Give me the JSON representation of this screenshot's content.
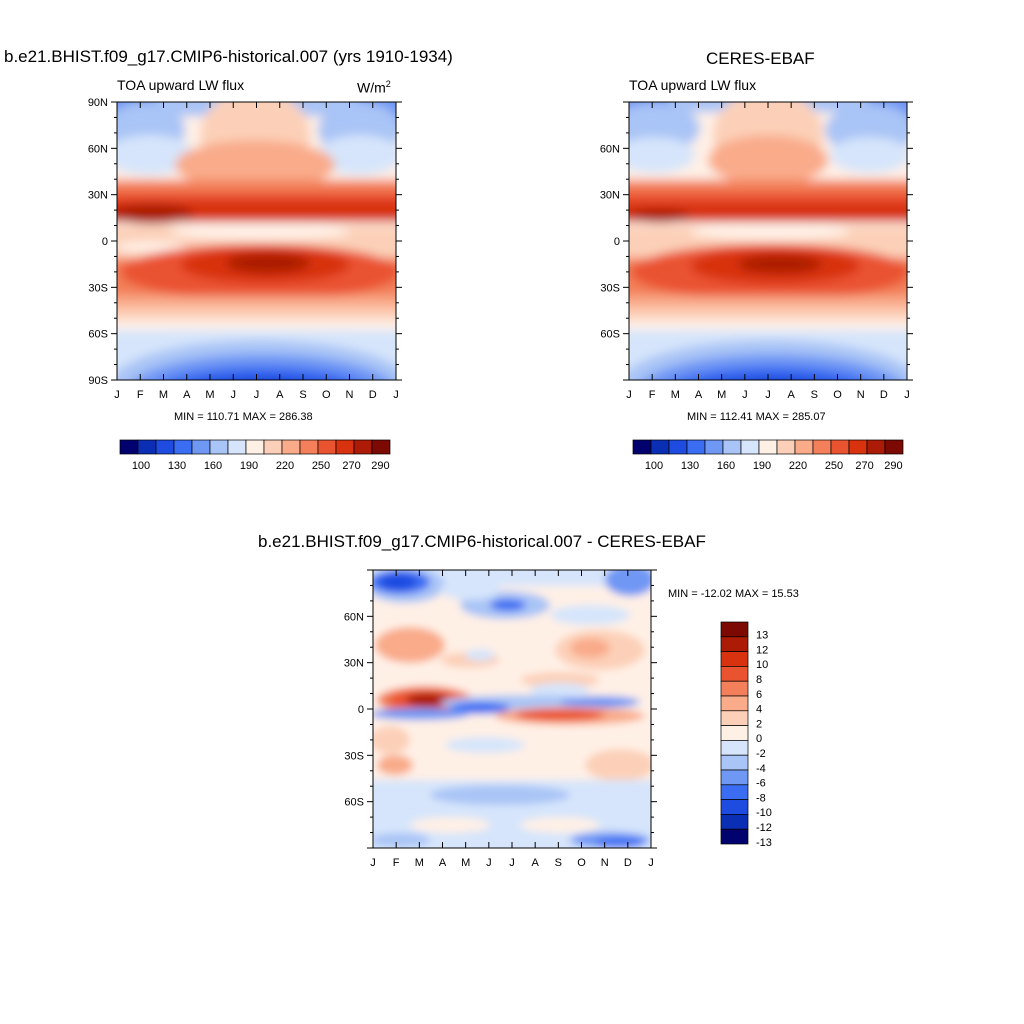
{
  "palette_abs": [
    "#02026e",
    "#0a2fb4",
    "#1e4ce0",
    "#3a6df2",
    "#6f97f4",
    "#a9c4f6",
    "#d6e5fb",
    "#fff0e6",
    "#fcd0b8",
    "#f9ab8a",
    "#f3805a",
    "#ea5330",
    "#d8320f",
    "#ab1b06",
    "#7d0a02"
  ],
  "palette_diff": [
    "#7d0a02",
    "#ab1b06",
    "#d8320f",
    "#ea5330",
    "#f3805a",
    "#f9ab8a",
    "#fcd0b8",
    "#fff0e6",
    "#d6e5fb",
    "#a9c4f6",
    "#6f97f4",
    "#3a6df2",
    "#1e4ce0",
    "#0a2fb4",
    "#02026e"
  ],
  "months": [
    "J",
    "F",
    "M",
    "A",
    "M",
    "J",
    "J",
    "A",
    "S",
    "O",
    "N",
    "D",
    "J"
  ],
  "panel1": {
    "title": "b.e21.BHIST.f09_g17.CMIP6-historical.007 (yrs 1910-1934)",
    "left_label": "TOA upward LW flux",
    "units_base": "W/m",
    "units_sup": "2",
    "minmax": "MIN = 110.71 MAX = 286.38",
    "yticks": [
      "90N",
      "60N",
      "30N",
      "0",
      "30S",
      "60S",
      "90S"
    ],
    "colorbar_labels": [
      "100",
      "130",
      "160",
      "190",
      "220",
      "250",
      "270",
      "290"
    ]
  },
  "panel2": {
    "title": "CERES-EBAF",
    "left_label": "TOA upward LW flux",
    "minmax": "MIN = 112.41 MAX = 285.07",
    "yticks": [
      "60N",
      "30N",
      "0",
      "30S",
      "60S"
    ],
    "colorbar_labels": [
      "100",
      "130",
      "160",
      "190",
      "220",
      "250",
      "270",
      "290"
    ]
  },
  "panel3": {
    "title": "b.e21.BHIST.f09_g17.CMIP6-historical.007 - CERES-EBAF",
    "minmax": "MIN = -12.02 MAX =  15.53",
    "yticks": [
      "60N",
      "30N",
      "0",
      "30S",
      "60S"
    ],
    "colorbar_labels": [
      "13",
      "12",
      "10",
      "8",
      "6",
      "4",
      "2",
      "0",
      "-2",
      "-4",
      "-6",
      "-8",
      "-10",
      "-12",
      "-13"
    ]
  },
  "chart_data": [
    {
      "type": "heatmap",
      "title": "b.e21.BHIST.f09_g17.CMIP6-historical.007 (yrs 1910-1934)",
      "subtitle": "TOA upward LW flux",
      "units": "W/m2",
      "x": [
        "J",
        "F",
        "M",
        "A",
        "M",
        "J",
        "J",
        "A",
        "S",
        "O",
        "N",
        "D",
        "J"
      ],
      "y_range": [
        -90,
        90
      ],
      "min": 110.71,
      "max": 286.38,
      "contour_levels": [
        100,
        110,
        120,
        130,
        140,
        150,
        160,
        170,
        180,
        190,
        200,
        210,
        220,
        230,
        240,
        250,
        260,
        270,
        280,
        290
      ],
      "features": [
        {
          "region": "north subtropical band",
          "lat_center": 17,
          "value_approx": 285,
          "peak_month": "F"
        },
        {
          "region": "south subtropical band",
          "lat_center": -15,
          "value_approx": 286,
          "peak_month": "J"
        },
        {
          "region": "antarctic minimum",
          "lat_center": -85,
          "value_approx": 111,
          "peak_month": "J"
        },
        {
          "region": "arctic",
          "lat_center": 85,
          "value_approx": 165,
          "peak_month": "J"
        }
      ]
    },
    {
      "type": "heatmap",
      "title": "CERES-EBAF",
      "subtitle": "TOA upward LW flux",
      "x": [
        "J",
        "F",
        "M",
        "A",
        "M",
        "J",
        "J",
        "A",
        "S",
        "O",
        "N",
        "D",
        "J"
      ],
      "y_range": [
        -90,
        90
      ],
      "min": 112.41,
      "max": 285.07,
      "features": [
        {
          "region": "north subtropical band",
          "lat_center": 17,
          "value_approx": 284,
          "peak_month": "F"
        },
        {
          "region": "south subtropical band",
          "lat_center": -14,
          "value_approx": 285,
          "peak_month": "J"
        },
        {
          "region": "antarctic minimum",
          "lat_center": -85,
          "value_approx": 112,
          "peak_month": "J"
        }
      ]
    },
    {
      "type": "heatmap",
      "title": "b.e21.BHIST.f09_g17.CMIP6-historical.007 - CERES-EBAF",
      "x": [
        "J",
        "F",
        "M",
        "A",
        "M",
        "J",
        "J",
        "A",
        "S",
        "O",
        "N",
        "D",
        "J"
      ],
      "y_range": [
        -90,
        90
      ],
      "min": -12.02,
      "max": 15.53,
      "contour_levels": [
        -13,
        -12,
        -10,
        -8,
        -6,
        -4,
        -2,
        0,
        2,
        4,
        6,
        8,
        10,
        12,
        13
      ],
      "features": [
        {
          "region": "equatorial positive anomaly",
          "lat_center": 6,
          "value_approx": 15.5,
          "peak_month": "M"
        },
        {
          "region": "equatorial negative anomaly",
          "lat_center": 1,
          "value_approx": -8,
          "peak_month": "A"
        },
        {
          "region": "arctic negative anomaly",
          "lat_center": 82,
          "value_approx": -12,
          "peak_month": "F"
        },
        {
          "region": "south equatorial positive",
          "lat_center": -7,
          "value_approx": 9,
          "peak_month": "S"
        }
      ]
    }
  ]
}
